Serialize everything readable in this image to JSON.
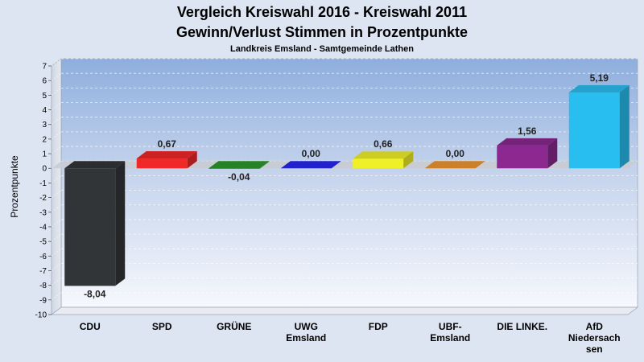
{
  "chart_data": {
    "type": "bar",
    "title": "Vergleich Kreiswahl 2016 - Kreiswahl 2011",
    "subtitle": "Gewinn/Verlust Stimmen in Prozentpunkte",
    "region": "Landkreis Emsland - Samtgemeinde Lathen",
    "ylabel": "Prozentpunkte",
    "xlabel": "",
    "ylim": [
      -10,
      7
    ],
    "yticks": [
      7,
      6,
      5,
      4,
      3,
      2,
      1,
      0,
      -1,
      -2,
      -3,
      -4,
      -5,
      -6,
      -7,
      -8,
      -9,
      -10
    ],
    "grid": true,
    "categories": [
      [
        "CDU"
      ],
      [
        "SPD"
      ],
      [
        "GRÜNE"
      ],
      [
        "UWG",
        "Emsland"
      ],
      [
        "FDP"
      ],
      [
        "UBF-",
        "Emsland"
      ],
      [
        "DIE LINKE."
      ],
      [
        "AfD",
        "Niedersach",
        "sen"
      ]
    ],
    "values": [
      -8.04,
      0.67,
      -0.04,
      0.0,
      0.66,
      0.0,
      1.56,
      5.19
    ],
    "value_labels": [
      "-8,04",
      "0,67",
      "-0,04",
      "0,00",
      "0,66",
      "0,00",
      "1,56",
      "5,19"
    ],
    "colors": [
      "#323538",
      "#f02828",
      "#2c9a2c",
      "#2828f0",
      "#f0f028",
      "#f09630",
      "#8c2890",
      "#28bef0"
    ]
  }
}
